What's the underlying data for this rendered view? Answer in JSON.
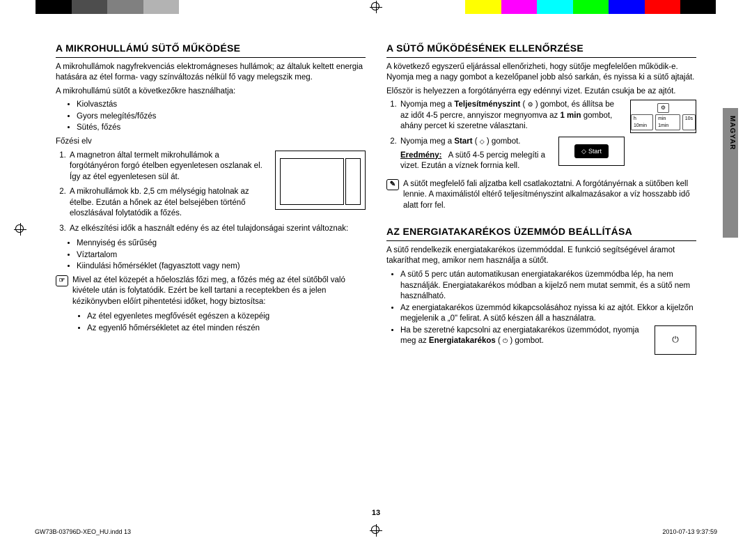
{
  "colorbar": [
    "#ffffff",
    "#000000",
    "#4d4d4d",
    "#808080",
    "#b3b3b3",
    "#ffffff",
    "#ffffff",
    "#ffffff",
    "#ffffff",
    "#ffffff",
    "#ffffff",
    "#ffffff",
    "#ffffff",
    "#ffff00",
    "#ff00ff",
    "#00ffff",
    "#00ff00",
    "#0000ff",
    "#ff0000",
    "#000000",
    "#ffffff"
  ],
  "left": {
    "h1": "A MIKROHULLÁMÚ SÜTŐ MŰKÖDÉSE",
    "intro": "A mikrohullámok nagyfrekvenciás elektromágneses hullámok; az általuk keltett energia hatására az étel forma- vagy színváltozás nélkül fő vagy melegszik meg.",
    "uses_label": "A mikrohullámú sütőt a következőkre használhatja:",
    "uses": [
      "Kiolvasztás",
      "Gyors melegítés/főzés",
      "Sütés, főzés"
    ],
    "principle_label": "Főzési elv",
    "ol": [
      "A magnetron által termelt mikrohullámok a forgótányéron forgó ételben egyenletesen oszlanak el. Így az étel egyenletesen sül át.",
      "A mikrohullámok kb. 2,5 cm mélységig hatolnak az ételbe. Ezután a hőnek az étel belsejében történő eloszlásával folytatódik a főzés.",
      "Az elkészítési idők a használt edény és az étel tulajdonságai szerint változnak:"
    ],
    "props": [
      "Mennyiség és sűrűség",
      "Víztartalom",
      "Kiindulási hőmérséklet (fagyasztott vagy nem)"
    ],
    "note": "Mivel az étel közepét a hőeloszlás főzi meg, a főzés még az étel sütőből való kivétele után is folytatódik. Ezért be kell tartani a receptekben és a jelen kézikönyvben előírt pihentetési időket, hogy biztosítsa:",
    "note_bullets": [
      "Az étel egyenletes megfővését egészen a közepéig",
      "Az egyenlő hőmérsékletet az étel minden részén"
    ]
  },
  "right": {
    "h1": "A SÜTŐ MŰKÖDÉSÉNEK ELLENŐRZÉSE",
    "intro": "A következő egyszerű eljárással ellenőrizheti, hogy sütője megfelelően működik-e. Nyomja meg a nagy gombot a kezelőpanel jobb alsó sarkán, és nyissa ki a sütő ajtaját.",
    "first": "Először is helyezzen a forgótányérra egy edénnyi vizet. Ezután csukja be az ajtót.",
    "step1_a": "Nyomja meg a ",
    "step1_bold": "Teljesítményszint",
    "step1_b": " ( ",
    "step1_c": " ) gombot, és állítsa be az időt 4-5 percre, annyiszor megnyomva az ",
    "step1_bold2": "1 min",
    "step1_d": " gombot, ahány percet ki szeretne választani.",
    "step2_a": "Nyomja meg a ",
    "step2_bold": "Start",
    "step2_b": " ( ",
    "step2_c": " ) gombot.",
    "result_label": "Eredmény:",
    "result": "A sütő 4-5 percig melegíti a vizet. Ezután a víznek forrnia kell.",
    "note": "A sütőt megfelelő fali aljzatba kell csatlakoztatni. A forgótányérnak a sütőben kell lennie. A maximálistól eltérő teljesítményszint alkalmazásakor a víz hosszabb idő alatt forr fel.",
    "panel": {
      "icon": "⚙",
      "b1": "h 10min",
      "b2": "min 1min",
      "b3": "10s"
    },
    "start_label": "Start",
    "h2": "AZ ENERGIATAKARÉKOS ÜZEMMÓD BEÁLLÍTÁSA",
    "eco_intro": "A sütő rendelkezik energiatakarékos üzemmóddal. E funkció segítségével áramot takaríthat meg, amikor nem használja a sütőt.",
    "eco_bullets": [
      "A sütő 5 perc után automatikusan energiatakarékos üzemmódba lép, ha nem használják. Energiatakarékos módban a kijelző nem mutat semmit, és a sütő nem használható.",
      "Az energiatakarékos üzemmód kikapcsolásához nyissa ki az ajtót. Ekkor a kijelzőn megjelenik a „0\" felirat. A sütő készen áll a használatra."
    ],
    "eco3_a": "Ha be szeretné kapcsolni az energiatakarékos üzemmódot, nyomja meg az ",
    "eco3_bold": "Energiatakarékos",
    "eco3_b": " ( ",
    "eco3_c": " ) gombot.",
    "eco_icon": "⏻"
  },
  "sideTab": "MAGYAR",
  "pageNum": "13",
  "footerLeft": "GW73B-03796D-XEO_HU.indd   13",
  "footerRight": "2010-07-13   9:37:59"
}
